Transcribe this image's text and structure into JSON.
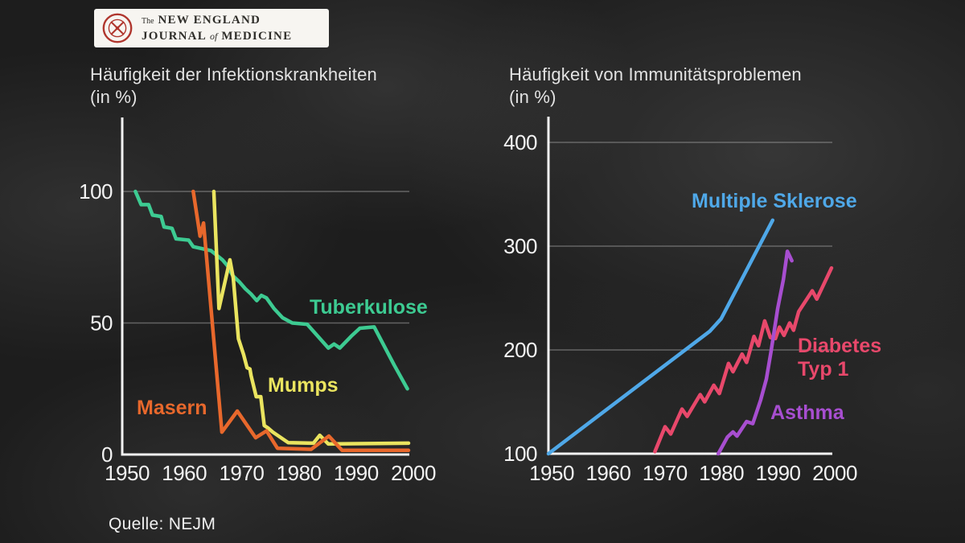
{
  "logo": {
    "the": "The",
    "line1": "NEW ENGLAND",
    "line2_journal": "JOURNAL",
    "line2_of": "of",
    "line2_medicine": "MEDICINE",
    "seal_color": "#b0362e"
  },
  "source": "Quelle: NEJM",
  "colors": {
    "axis": "#f2f2f2",
    "grid": "#9b9b9b",
    "tick_text": "#f2f2f2",
    "title_text": "#e2e2e2"
  },
  "chart_data": [
    {
      "type": "line",
      "title": "Häufigkeit der Infektionskrankheiten",
      "subtitle": "(in %)",
      "xlim": [
        1950,
        2000
      ],
      "ylim": [
        0,
        100
      ],
      "x_ticks": [
        1950,
        1960,
        1970,
        1980,
        1990,
        2000
      ],
      "y_ticks": [
        0,
        50,
        100
      ],
      "grid_y": [
        50,
        100
      ],
      "grid": "horizontal-only",
      "legend_position": "inline-colored-labels",
      "series": [
        {
          "name": "Tuberkulose",
          "color": "#3dcb92",
          "label_lines": [
            "Tuberkulose"
          ],
          "points": [
            [
              1952.3,
              100
            ],
            [
              1953.3,
              95
            ],
            [
              1954.6,
              95
            ],
            [
              1955.3,
              91
            ],
            [
              1956.8,
              90.5
            ],
            [
              1957.3,
              86.5
            ],
            [
              1958.7,
              86
            ],
            [
              1959.4,
              82
            ],
            [
              1961.6,
              81.5
            ],
            [
              1962.4,
              79
            ],
            [
              1965.5,
              77.5
            ],
            [
              1967.5,
              74
            ],
            [
              1968.3,
              72
            ],
            [
              1969.3,
              68
            ],
            [
              1970.5,
              65.5
            ],
            [
              1971.5,
              63
            ],
            [
              1972.5,
              61
            ],
            [
              1973.5,
              58.5
            ],
            [
              1974.3,
              60.5
            ],
            [
              1975.2,
              59.5
            ],
            [
              1976.5,
              55.5
            ],
            [
              1978,
              52
            ],
            [
              1979.7,
              50
            ],
            [
              1982.3,
              49.5
            ],
            [
              1986,
              40.5
            ],
            [
              1987,
              42
            ],
            [
              1988,
              40.5
            ],
            [
              1990,
              45
            ],
            [
              1991.5,
              48
            ],
            [
              1994,
              48.5
            ],
            [
              1997.5,
              34
            ],
            [
              1999.8,
              25
            ]
          ]
        },
        {
          "name": "Mumps",
          "color": "#eae45f",
          "label_lines": [
            "Mumps"
          ],
          "points": [
            [
              1966,
              100
            ],
            [
              1966.9,
              55.5
            ],
            [
              1968.8,
              74
            ],
            [
              1969.4,
              67
            ],
            [
              1970.3,
              44
            ],
            [
              1971.2,
              38
            ],
            [
              1971.8,
              33
            ],
            [
              1972.3,
              32.5
            ],
            [
              1972.5,
              30
            ],
            [
              1973.4,
              22
            ],
            [
              1974.2,
              22
            ],
            [
              1974.8,
              11
            ],
            [
              1975.5,
              10
            ],
            [
              1976.3,
              8.5
            ],
            [
              1979,
              4.5
            ],
            [
              1983.4,
              4.3
            ],
            [
              1984.5,
              7.3
            ],
            [
              1986,
              4
            ],
            [
              2000,
              4.3
            ]
          ]
        },
        {
          "name": "Masern",
          "color": "#e8682c",
          "label_lines": [
            "Masern"
          ],
          "points": [
            [
              1962.4,
              100
            ],
            [
              1963.6,
              83
            ],
            [
              1964.2,
              88
            ],
            [
              1967.4,
              8.5
            ],
            [
              1970.1,
              16.5
            ],
            [
              1973.3,
              6.4
            ],
            [
              1975.2,
              9
            ],
            [
              1977.1,
              2.4
            ],
            [
              1983,
              2
            ],
            [
              1986.1,
              7
            ],
            [
              1988.4,
              1.6
            ],
            [
              2000,
              1.6
            ]
          ]
        }
      ]
    },
    {
      "type": "line",
      "title": "Häufigkeit von Immunitätsproblemen",
      "subtitle": "(in %)",
      "xlim": [
        1950,
        2000
      ],
      "ylim": [
        100,
        400
      ],
      "x_ticks": [
        1950,
        1960,
        1970,
        1980,
        1990,
        2000
      ],
      "y_ticks": [
        100,
        200,
        300,
        400
      ],
      "grid_y": [
        200,
        300,
        400
      ],
      "grid": "horizontal-only",
      "legend_position": "inline-colored-labels",
      "series": [
        {
          "name": "Multiple Sklerose",
          "color": "#4fa8e8",
          "label_lines": [
            "Multiple Sklerose"
          ],
          "points": [
            [
              1950,
              100
            ],
            [
              1978.5,
              218
            ],
            [
              1980.5,
              230
            ],
            [
              1989.6,
              325
            ]
          ]
        },
        {
          "name": "Diabetes Typ 1",
          "color": "#e8486b",
          "label_lines": [
            "Diabetes",
            "Typ 1"
          ],
          "points": [
            [
              1968.8,
              102
            ],
            [
              1970.6,
              126
            ],
            [
              1971.6,
              119
            ],
            [
              1973.6,
              143
            ],
            [
              1974.5,
              136
            ],
            [
              1976.8,
              157
            ],
            [
              1977.6,
              150
            ],
            [
              1979.2,
              166
            ],
            [
              1980.2,
              158
            ],
            [
              1981.8,
              187
            ],
            [
              1982.6,
              179
            ],
            [
              1984.2,
              196
            ],
            [
              1985,
              188
            ],
            [
              1986.3,
              213
            ],
            [
              1987.1,
              204
            ],
            [
              1988.2,
              228
            ],
            [
              1989.2,
              212
            ],
            [
              1990.1,
              211
            ],
            [
              1990.8,
              222
            ],
            [
              1991.6,
              214
            ],
            [
              1992.6,
              226
            ],
            [
              1993.3,
              219
            ],
            [
              1994.2,
              237
            ],
            [
              1996.6,
              257
            ],
            [
              1997.4,
              249
            ],
            [
              2000,
              279
            ]
          ]
        },
        {
          "name": "Asthma",
          "color": "#a74ed0",
          "label_lines": [
            "Asthma"
          ],
          "points": [
            [
              1980,
              100
            ],
            [
              1981.6,
              116
            ],
            [
              1982.6,
              121
            ],
            [
              1983.3,
              117
            ],
            [
              1985,
              131
            ],
            [
              1986.1,
              129
            ],
            [
              1987.5,
              152
            ],
            [
              1988.5,
              172
            ],
            [
              1989.3,
              198
            ],
            [
              1990.5,
              240
            ],
            [
              1991.5,
              268
            ],
            [
              1992.2,
              295
            ],
            [
              1993,
              286
            ]
          ]
        }
      ]
    }
  ]
}
